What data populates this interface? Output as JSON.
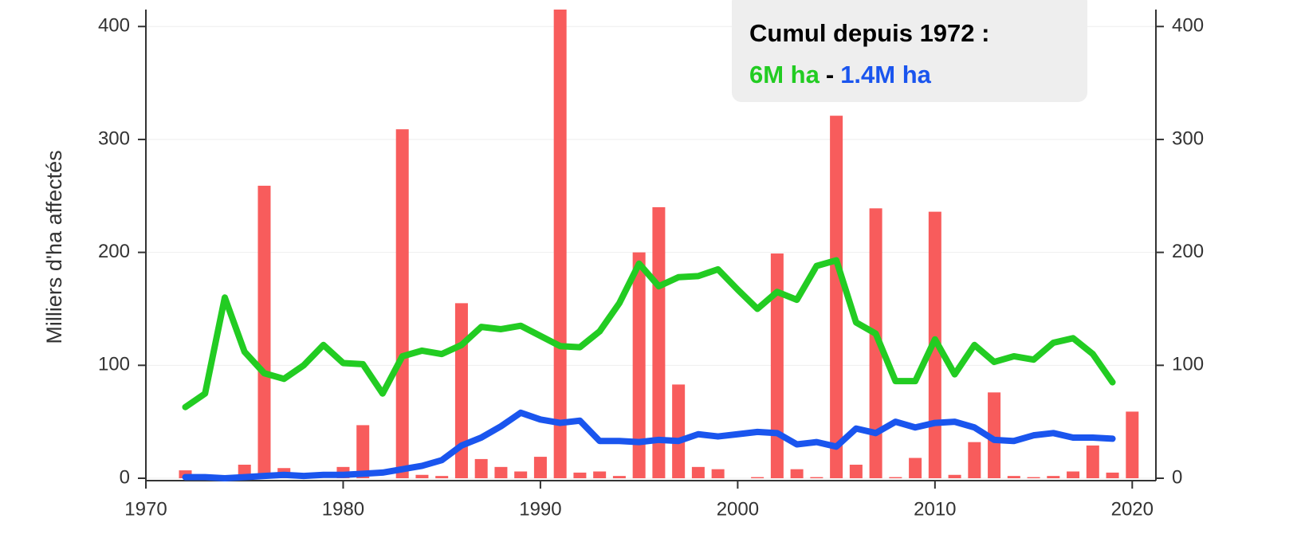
{
  "chart_data": {
    "type": "bar_line",
    "y_label": "Milliers d'ha affectés",
    "x": [
      1972,
      1973,
      1974,
      1975,
      1976,
      1977,
      1978,
      1979,
      1980,
      1981,
      1982,
      1983,
      1984,
      1985,
      1986,
      1987,
      1988,
      1989,
      1990,
      1991,
      1992,
      1993,
      1994,
      1995,
      1996,
      1997,
      1998,
      1999,
      2000,
      2001,
      2002,
      2003,
      2004,
      2005,
      2006,
      2007,
      2008,
      2009,
      2010,
      2011,
      2012,
      2013,
      2014,
      2015,
      2016,
      2017,
      2018,
      2019,
      2020
    ],
    "bars": {
      "color": "#f85c5c",
      "values": [
        7,
        0,
        0,
        12,
        259,
        9,
        0,
        0,
        10,
        47,
        0,
        309,
        3,
        2,
        155,
        17,
        10,
        6,
        19,
        415,
        5,
        6,
        2,
        200,
        240,
        83,
        10,
        8,
        0,
        1,
        199,
        8,
        1,
        321,
        12,
        239,
        1,
        18,
        236,
        3,
        32,
        76,
        2,
        1,
        2,
        6,
        29,
        5,
        59
      ]
    },
    "series": [
      {
        "color": "#22cc22",
        "values": [
          63,
          75,
          160,
          112,
          93,
          88,
          100,
          118,
          102,
          101,
          75,
          108,
          113,
          110,
          118,
          134,
          132,
          135,
          126,
          117,
          116,
          130,
          155,
          190,
          170,
          178,
          179,
          185,
          167,
          150,
          165,
          158,
          188,
          193,
          138,
          128,
          86,
          86,
          123,
          92,
          118,
          103,
          108,
          105,
          120,
          124,
          110,
          85,
          null
        ]
      },
      {
        "color": "#1a55ee",
        "values": [
          1,
          1,
          0,
          1,
          2,
          3,
          2,
          3,
          3,
          4,
          5,
          8,
          11,
          16,
          29,
          36,
          46,
          58,
          52,
          49,
          51,
          33,
          33,
          32,
          34,
          33,
          39,
          37,
          39,
          41,
          40,
          30,
          32,
          28,
          44,
          40,
          50,
          45,
          49,
          50,
          45,
          34,
          33,
          38,
          40,
          36,
          36,
          35,
          null
        ]
      }
    ],
    "xlim": [
      1970,
      2021.2
    ],
    "xticks": [
      1970,
      1980,
      1990,
      2000,
      2010,
      2020
    ],
    "ylim": [
      0,
      415
    ],
    "yticks": [
      0,
      100,
      200,
      300,
      400
    ],
    "y2lim": [
      0,
      415
    ],
    "y2ticks": [
      0,
      100,
      200,
      300,
      400
    ],
    "annotation": {
      "title": "Cumul depuis 1972 :",
      "parts": [
        "6M ha",
        "-",
        "1.4M ha"
      ]
    }
  }
}
